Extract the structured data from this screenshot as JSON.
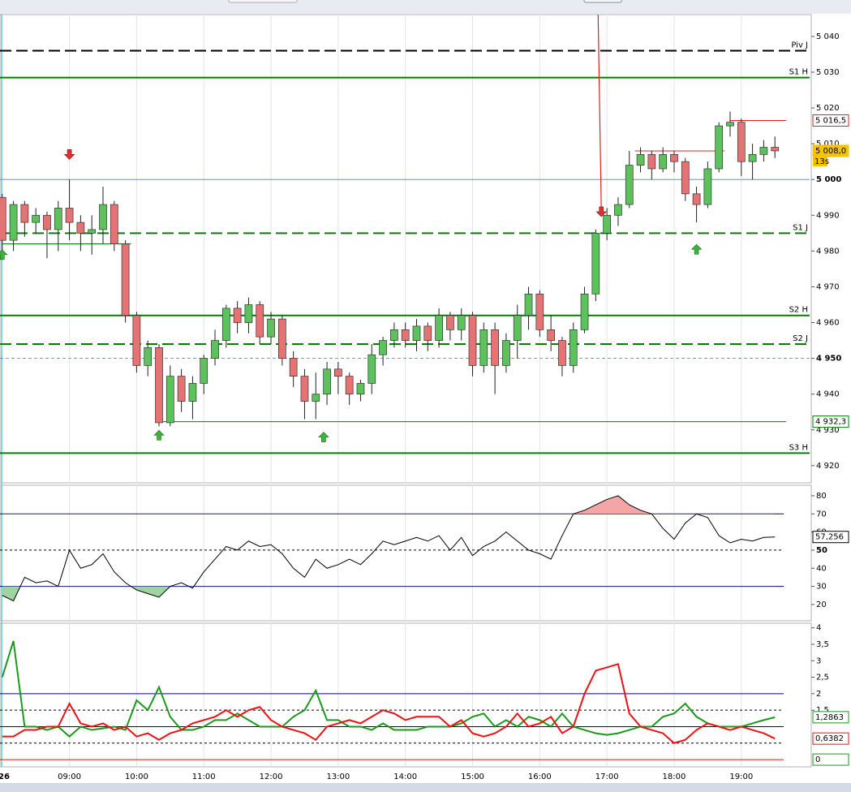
{
  "chart_data": [
    {
      "type": "candlestick",
      "xlim": [
        "07:58",
        "20:01"
      ],
      "ylim": [
        4915.2,
        5046.1
      ],
      "x": [
        "08:00",
        "08:10",
        "08:20",
        "08:30",
        "08:40",
        "08:50",
        "09:00",
        "09:10",
        "09:20",
        "09:30",
        "09:40",
        "09:50",
        "10:00",
        "10:10",
        "10:20",
        "10:30",
        "10:40",
        "10:50",
        "11:00",
        "11:10",
        "11:20",
        "11:30",
        "11:40",
        "11:50",
        "12:00",
        "12:10",
        "12:20",
        "12:30",
        "12:40",
        "12:50",
        "13:00",
        "13:10",
        "13:20",
        "13:30",
        "13:40",
        "13:50",
        "14:00",
        "14:10",
        "14:20",
        "14:30",
        "14:40",
        "14:50",
        "15:00",
        "15:10",
        "15:20",
        "15:30",
        "15:40",
        "15:50",
        "16:00",
        "16:10",
        "16:20",
        "16:30",
        "16:40",
        "16:50",
        "17:00",
        "17:10",
        "17:20",
        "17:30",
        "17:40",
        "17:50",
        "18:00",
        "18:10",
        "18:20",
        "18:30",
        "18:40",
        "18:50",
        "19:00",
        "19:10",
        "19:20",
        "19:30"
      ],
      "open": [
        4995,
        4983,
        4993,
        4988,
        4990,
        4986,
        4992,
        4988,
        4985,
        4986,
        4993,
        4982,
        4962,
        4948,
        4953,
        4932,
        4945,
        4938,
        4943,
        4950,
        4955,
        4964,
        4960,
        4965,
        4956,
        4961,
        4950,
        4945,
        4938,
        4940,
        4947,
        4945,
        4940,
        4943,
        4951,
        4955,
        4958,
        4955,
        4959,
        4955,
        4962,
        4958,
        4962,
        4948,
        4958,
        4948,
        4955,
        4962,
        4968,
        4958,
        4955,
        4948,
        4958,
        4968,
        4985,
        4990,
        4993,
        5004,
        5007,
        5003,
        5007,
        5005,
        4996,
        4993,
        5003,
        5015,
        5016,
        5005,
        5007,
        5009
      ],
      "high": [
        4996,
        4994,
        4994,
        4992,
        4991,
        4994,
        5000,
        4990,
        4990,
        4998,
        4994,
        4983,
        4963,
        4955,
        4954,
        4948,
        4947,
        4945,
        4951,
        4958,
        4965,
        4966,
        4967,
        4966,
        4963,
        4962,
        4952,
        4947,
        4946,
        4949,
        4949,
        4946,
        4944,
        4954,
        4956,
        4960,
        4960,
        4961,
        4960,
        4964,
        4963,
        4964,
        4963,
        4960,
        4960,
        4957,
        4965,
        4970,
        4969,
        4962,
        4956,
        4960,
        4970,
        4986,
        4992,
        4995,
        5008,
        5009,
        5008,
        5009,
        5008,
        5006,
        4998,
        5005,
        5016,
        5019,
        5017,
        5010,
        5011,
        5012
      ],
      "low": [
        4978,
        4980,
        4984,
        4985,
        4978,
        4980,
        4983,
        4980,
        4979,
        4982,
        4980,
        4960,
        4946,
        4945,
        4931,
        4931,
        4935,
        4933,
        4940,
        4948,
        4953,
        4957,
        4957,
        4954,
        4954,
        4948,
        4942,
        4933,
        4933,
        4937,
        4940,
        4937,
        4938,
        4940,
        4948,
        4953,
        4953,
        4952,
        4952,
        4953,
        4955,
        4955,
        4945,
        4946,
        4940,
        4946,
        4950,
        4958,
        4956,
        4952,
        4945,
        4946,
        4957,
        4966,
        4983,
        4987,
        4992,
        5002,
        5000,
        5002,
        5002,
        4994,
        4988,
        4992,
        5002,
        5012,
        5001,
        5000,
        5005,
        5006
      ],
      "close": [
        4983,
        4993,
        4988,
        4990,
        4986,
        4992,
        4988,
        4985,
        4986,
        4993,
        4982,
        4962,
        4948,
        4953,
        4932,
        4945,
        4938,
        4943,
        4950,
        4955,
        4964,
        4960,
        4965,
        4956,
        4961,
        4950,
        4945,
        4938,
        4940,
        4947,
        4945,
        4940,
        4943,
        4951,
        4955,
        4958,
        4955,
        4959,
        4955,
        4962,
        4958,
        4962,
        4948,
        4958,
        4948,
        4955,
        4962,
        4968,
        4958,
        4955,
        4948,
        4958,
        4968,
        4985,
        4990,
        4993,
        5004,
        5007,
        5003,
        5007,
        5005,
        4996,
        4993,
        5003,
        5015,
        5016,
        5005,
        5007,
        5009,
        5008
      ],
      "yticks": [
        {
          "value": 4920,
          "label": "4 920"
        },
        {
          "value": 4930,
          "label": "4 930"
        },
        {
          "value": 4940,
          "label": "4 940"
        },
        {
          "value": 4950,
          "label": "4 950"
        },
        {
          "value": 4960,
          "label": "4 960"
        },
        {
          "value": 4970,
          "label": "4 970"
        },
        {
          "value": 4980,
          "label": "4 980"
        },
        {
          "value": 4990,
          "label": "4 990"
        },
        {
          "value": 5000,
          "label": "5 000"
        },
        {
          "value": 5010,
          "label": "5 010"
        },
        {
          "value": 5020,
          "label": "5 020"
        },
        {
          "value": 5030,
          "label": "5 030"
        },
        {
          "value": 5040,
          "label": "5 040"
        }
      ],
      "bold_ticks": [
        4950,
        5000
      ],
      "levels": [
        {
          "label": "Piv J",
          "value": 5036,
          "color": "#000000",
          "dash": true
        },
        {
          "label": "S1 H",
          "value": 5028.5,
          "color": "#008000",
          "dash": false
        },
        {
          "value": 5000,
          "color": "#5577dd",
          "thin": true
        },
        {
          "label": "S1 J",
          "value": 4985,
          "color": "#008000",
          "dash": true
        },
        {
          "label": "S2 H",
          "value": 4962,
          "color": "#008000",
          "dash": false
        },
        {
          "label": "S2 J",
          "value": 4954,
          "color": "#008000",
          "dash": true
        },
        {
          "value": 4950,
          "color": "#5577dd",
          "thin": true,
          "dotted": true
        },
        {
          "label": "S3 H",
          "value": 4923.5,
          "color": "#008000",
          "dash": false
        }
      ],
      "segments": [
        {
          "from": "08:00",
          "to": "09:55",
          "value": 4982,
          "color": "#008000"
        },
        {
          "from": "10:20",
          "to": "19:40",
          "value": 4932.3,
          "color": "#008000"
        },
        {
          "from": "17:25",
          "to": "18:45",
          "value": 5008,
          "color": "#e02020"
        },
        {
          "from": "18:50",
          "to": "19:40",
          "value": 5016.5,
          "color": "#e02020"
        }
      ],
      "arrows": [
        {
          "x": "08:00",
          "y": 4979,
          "dir": "up"
        },
        {
          "x": "09:00",
          "y": 5007,
          "dir": "down"
        },
        {
          "x": "10:20",
          "y": 4928.5,
          "dir": "up"
        },
        {
          "x": "12:47",
          "y": 4928,
          "dir": "up"
        },
        {
          "x": "16:55",
          "y": 4991,
          "dir": "down",
          "line": true
        },
        {
          "x": "18:20",
          "y": 4980.5,
          "dir": "up"
        }
      ],
      "last_labels": [
        {
          "value": 5016.5,
          "label": "5 016,5",
          "color": "#e02020"
        },
        {
          "value": 5008,
          "label": "5 008,0",
          "color": "#000000",
          "fill": "#f5c400",
          "note": "13s"
        },
        {
          "value": 4932.3,
          "label": "4 932,3",
          "color": "#008000"
        }
      ]
    },
    {
      "type": "line",
      "xlim": [
        "07:58",
        "20:01"
      ],
      "ylim": [
        11,
        85.8
      ],
      "x": [
        "08:00",
        "08:10",
        "08:20",
        "08:30",
        "08:40",
        "08:50",
        "09:00",
        "09:10",
        "09:20",
        "09:30",
        "09:40",
        "09:50",
        "10:00",
        "10:10",
        "10:20",
        "10:30",
        "10:40",
        "10:50",
        "11:00",
        "11:10",
        "11:20",
        "11:30",
        "11:40",
        "11:50",
        "12:00",
        "12:10",
        "12:20",
        "12:30",
        "12:40",
        "12:50",
        "13:00",
        "13:10",
        "13:20",
        "13:30",
        "13:40",
        "13:50",
        "14:00",
        "14:10",
        "14:20",
        "14:30",
        "14:40",
        "14:50",
        "15:00",
        "15:10",
        "15:20",
        "15:30",
        "15:40",
        "15:50",
        "16:00",
        "16:10",
        "16:20",
        "16:30",
        "16:40",
        "16:50",
        "17:00",
        "17:10",
        "17:20",
        "17:30",
        "17:40",
        "17:50",
        "18:00",
        "18:10",
        "18:20",
        "18:30",
        "18:40",
        "18:50",
        "19:00",
        "19:10",
        "19:20",
        "19:30"
      ],
      "series": [
        {
          "color": "#000000",
          "values": [
            25,
            22,
            35,
            32,
            33,
            30,
            50,
            40,
            42,
            48,
            38,
            32,
            28,
            26,
            24,
            30,
            32,
            29,
            38,
            45,
            52,
            50,
            55,
            52,
            53,
            48,
            40,
            35,
            45,
            40,
            42,
            45,
            42,
            48,
            55,
            53,
            55,
            57,
            55,
            58,
            50,
            57,
            47,
            52,
            55,
            60,
            55,
            50,
            48,
            45,
            58,
            70,
            72,
            75,
            78,
            80,
            75,
            72,
            70,
            62,
            56,
            65,
            70,
            68,
            58,
            54,
            56,
            55,
            57,
            57.256
          ]
        }
      ],
      "yticks": [
        20,
        30,
        40,
        50,
        60,
        70,
        80
      ],
      "bold_ticks": [
        50
      ],
      "hlines": [
        {
          "value": 70,
          "color": "#00008b"
        },
        {
          "value": 50,
          "color": "#000000",
          "dash": true
        },
        {
          "value": 30,
          "color": "#00008b"
        }
      ],
      "overbought": 70,
      "oversold": 30,
      "last_labels": [
        {
          "value": 57.256,
          "label": "57,256",
          "color": "#000000"
        }
      ]
    },
    {
      "type": "line",
      "xlim": [
        "07:58",
        "20:01"
      ],
      "ylim": [
        -0.22,
        4.14
      ],
      "x": [
        "08:00",
        "08:10",
        "08:20",
        "08:30",
        "08:40",
        "08:50",
        "09:00",
        "09:10",
        "09:20",
        "09:30",
        "09:40",
        "09:50",
        "10:00",
        "10:10",
        "10:20",
        "10:30",
        "10:40",
        "10:50",
        "11:00",
        "11:10",
        "11:20",
        "11:30",
        "11:40",
        "11:50",
        "12:00",
        "12:10",
        "12:20",
        "12:30",
        "12:40",
        "12:50",
        "13:00",
        "13:10",
        "13:20",
        "13:30",
        "13:40",
        "13:50",
        "14:00",
        "14:10",
        "14:20",
        "14:30",
        "14:40",
        "14:50",
        "15:00",
        "15:10",
        "15:20",
        "15:30",
        "15:40",
        "15:50",
        "16:00",
        "16:10",
        "16:20",
        "16:30",
        "16:40",
        "16:50",
        "17:00",
        "17:10",
        "17:20",
        "17:30",
        "17:40",
        "17:50",
        "18:00",
        "18:10",
        "18:20",
        "18:30",
        "18:40",
        "18:50",
        "19:00",
        "19:10",
        "19:20",
        "19:30"
      ],
      "series": [
        {
          "color": "#1a9a1a",
          "values": [
            2.5,
            3.6,
            1.0,
            1.0,
            0.9,
            1.0,
            0.7,
            1.0,
            0.9,
            0.95,
            1.0,
            0.9,
            1.8,
            1.5,
            2.2,
            1.3,
            0.9,
            0.9,
            1.0,
            1.2,
            1.2,
            1.4,
            1.2,
            1.0,
            1.0,
            1.0,
            1.3,
            1.5,
            2.1,
            1.2,
            1.2,
            1.0,
            1.0,
            0.9,
            1.1,
            0.9,
            0.9,
            0.9,
            1.0,
            1.0,
            1.0,
            1.1,
            1.3,
            1.4,
            1.0,
            1.2,
            1.0,
            1.3,
            1.2,
            1.0,
            1.4,
            1.0,
            0.9,
            0.8,
            0.75,
            0.8,
            0.9,
            1.0,
            1.0,
            1.3,
            1.4,
            1.7,
            1.3,
            1.1,
            1.0,
            1.0,
            1.0,
            1.1,
            1.2,
            1.2863
          ]
        },
        {
          "color": "#ee1111",
          "values": [
            0.7,
            0.7,
            0.9,
            0.9,
            1.0,
            1.0,
            1.7,
            1.1,
            1.0,
            1.1,
            0.9,
            1.0,
            0.7,
            0.8,
            0.6,
            0.8,
            0.9,
            1.1,
            1.2,
            1.3,
            1.5,
            1.3,
            1.5,
            1.6,
            1.2,
            1.0,
            0.9,
            0.8,
            0.6,
            1.0,
            1.1,
            1.2,
            1.1,
            1.3,
            1.5,
            1.4,
            1.2,
            1.3,
            1.3,
            1.3,
            1.0,
            1.2,
            0.8,
            0.7,
            0.8,
            1.0,
            1.4,
            1.0,
            1.1,
            1.3,
            0.8,
            1.0,
            2.0,
            2.7,
            2.8,
            2.9,
            1.4,
            1.0,
            0.9,
            0.8,
            0.5,
            0.6,
            0.9,
            1.1,
            1.0,
            0.9,
            1.0,
            0.9,
            0.8,
            0.6382
          ]
        }
      ],
      "yticks": [
        {
          "value": 1.5,
          "label": "1,5"
        },
        2,
        {
          "value": 2.5,
          "label": "2,5"
        },
        3,
        {
          "value": 3.5,
          "label": "3,5"
        },
        4
      ],
      "hlines": [
        {
          "value": 2,
          "color": "#00008b"
        },
        {
          "value": 1.5,
          "color": "#000000",
          "dash": true
        },
        {
          "value": 1,
          "color": "#00008b"
        },
        {
          "value": 0.5,
          "color": "#000000",
          "dash": true
        },
        {
          "value": 0,
          "color": "#ee1111"
        }
      ],
      "last_labels": [
        {
          "value": 1.2863,
          "label": "1,2863",
          "color": "#1a9a1a"
        },
        {
          "value": 0.6382,
          "label": "0,6382",
          "color": "#ee1111"
        },
        {
          "value": 0,
          "label": "0",
          "color": "#1a9a1a"
        }
      ],
      "date_label": "26",
      "xticks": [
        "09:00",
        "10:00",
        "11:00",
        "12:00",
        "13:00",
        "14:00",
        "15:00",
        "16:00",
        "17:00",
        "18:00",
        "19:00"
      ]
    }
  ]
}
